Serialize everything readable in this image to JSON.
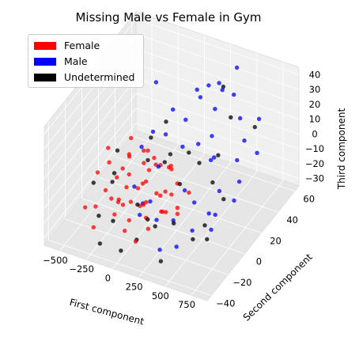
{
  "chart_data": {
    "type": "scatter",
    "title": "Missing Male vs Female in Gym",
    "xlabel": "First component",
    "ylabel": "Second component",
    "zlabel": "Third component",
    "xlim": [
      -650,
      900
    ],
    "ylim": [
      -45,
      65
    ],
    "zlim": [
      -35,
      45
    ],
    "x_ticks": [
      "−500",
      "−250",
      "0",
      "250",
      "500",
      "750"
    ],
    "x_tick_values": [
      -500,
      -250,
      0,
      250,
      500,
      750
    ],
    "y_ticks": [
      "−40",
      "−20",
      "0",
      "20",
      "40",
      "60"
    ],
    "y_tick_values": [
      -40,
      -20,
      0,
      20,
      40,
      60
    ],
    "z_ticks": [
      "−30",
      "−20",
      "−10",
      "0",
      "10",
      "20",
      "30",
      "40"
    ],
    "z_tick_values": [
      -30,
      -20,
      -10,
      0,
      10,
      20,
      30,
      40
    ],
    "legend_position": "top-left",
    "grid": true,
    "series": [
      {
        "name": "Female",
        "color": "#ff0000",
        "points": [
          [
            -420,
            -10,
            -5
          ],
          [
            -350,
            -5,
            0
          ],
          [
            -300,
            5,
            -10
          ],
          [
            -250,
            -15,
            -15
          ],
          [
            -200,
            0,
            -8
          ],
          [
            -150,
            10,
            -20
          ],
          [
            -100,
            -20,
            -12
          ],
          [
            -50,
            5,
            -5
          ],
          [
            0,
            -8,
            -18
          ],
          [
            50,
            12,
            -22
          ],
          [
            100,
            -5,
            -10
          ],
          [
            150,
            0,
            -25
          ],
          [
            200,
            -12,
            -15
          ],
          [
            -380,
            8,
            -20
          ],
          [
            -280,
            -18,
            -8
          ],
          [
            -180,
            15,
            -2
          ],
          [
            -80,
            -2,
            -25
          ],
          [
            20,
            20,
            -12
          ],
          [
            120,
            -20,
            -5
          ],
          [
            220,
            5,
            -28
          ],
          [
            -320,
            -25,
            -15
          ],
          [
            -220,
            25,
            -10
          ],
          [
            -120,
            -10,
            -30
          ],
          [
            -20,
            15,
            -8
          ],
          [
            80,
            -15,
            -20
          ],
          [
            180,
            10,
            -12
          ],
          [
            -400,
            0,
            5
          ],
          [
            -260,
            10,
            8
          ],
          [
            -160,
            -5,
            10
          ],
          [
            -60,
            0,
            3
          ],
          [
            40,
            -10,
            0
          ],
          [
            140,
            8,
            -2
          ],
          [
            -300,
            -30,
            -25
          ],
          [
            -200,
            30,
            -18
          ],
          [
            -100,
            -25,
            -5
          ],
          [
            0,
            25,
            -15
          ],
          [
            100,
            -30,
            -25
          ],
          [
            250,
            15,
            -20
          ],
          [
            300,
            -5,
            -15
          ],
          [
            -340,
            18,
            -12
          ],
          [
            -240,
            -8,
            -22
          ],
          [
            -140,
            3,
            -18
          ],
          [
            -40,
            -18,
            -10
          ],
          [
            60,
            18,
            -28
          ],
          [
            160,
            -8,
            -8
          ],
          [
            -420,
            -25,
            -18
          ],
          [
            -320,
            12,
            -28
          ],
          [
            -220,
            -15,
            -25
          ],
          [
            -120,
            22,
            -15
          ],
          [
            -20,
            -28,
            -22
          ],
          [
            80,
            5,
            -30
          ],
          [
            180,
            -25,
            -18
          ]
        ]
      },
      {
        "name": "Male",
        "color": "#0000ff",
        "points": [
          [
            300,
            40,
            20
          ],
          [
            350,
            30,
            10
          ],
          [
            400,
            50,
            25
          ],
          [
            450,
            20,
            5
          ],
          [
            500,
            45,
            15
          ],
          [
            550,
            35,
            -5
          ],
          [
            600,
            55,
            10
          ],
          [
            650,
            25,
            -10
          ],
          [
            700,
            40,
            0
          ],
          [
            250,
            10,
            -15
          ],
          [
            300,
            -10,
            -20
          ],
          [
            200,
            45,
            30
          ],
          [
            150,
            20,
            5
          ],
          [
            350,
            60,
            35
          ],
          [
            420,
            0,
            -12
          ],
          [
            480,
            10,
            -25
          ],
          [
            520,
            -15,
            -18
          ],
          [
            580,
            5,
            -20
          ],
          [
            620,
            -5,
            -22
          ],
          [
            680,
            15,
            -15
          ],
          [
            100,
            30,
            15
          ],
          [
            50,
            50,
            20
          ],
          [
            0,
            10,
            -5
          ],
          [
            -50,
            25,
            5
          ],
          [
            -100,
            40,
            10
          ],
          [
            -150,
            0,
            -15
          ],
          [
            -200,
            15,
            0
          ],
          [
            -250,
            35,
            -5
          ],
          [
            -300,
            45,
            20
          ],
          [
            220,
            55,
            25
          ],
          [
            380,
            25,
            -2
          ],
          [
            460,
            55,
            -8
          ],
          [
            540,
            15,
            -12
          ],
          [
            260,
            -25,
            -10
          ],
          [
            330,
            -30,
            -25
          ],
          [
            410,
            -20,
            -28
          ],
          [
            120,
            -15,
            -8
          ],
          [
            180,
            35,
            -3
          ],
          [
            -30,
            -5,
            -20
          ],
          [
            60,
            -20,
            -15
          ],
          [
            280,
            25,
            38
          ],
          [
            330,
            45,
            30
          ]
        ]
      },
      {
        "name": "Undetermined",
        "color": "#000000",
        "points": [
          [
            -380,
            5,
            -15
          ],
          [
            -280,
            -10,
            -8
          ],
          [
            -180,
            20,
            -12
          ],
          [
            -80,
            -5,
            -22
          ],
          [
            20,
            15,
            -5
          ],
          [
            120,
            -18,
            -18
          ],
          [
            220,
            8,
            -10
          ],
          [
            320,
            -12,
            -20
          ],
          [
            420,
            22,
            -14
          ],
          [
            520,
            0,
            -25
          ],
          [
            -330,
            -20,
            -25
          ],
          [
            -230,
            30,
            -5
          ],
          [
            -130,
            -28,
            -18
          ],
          [
            -30,
            28,
            -10
          ],
          [
            70,
            -25,
            -28
          ],
          [
            170,
            25,
            -2
          ],
          [
            270,
            -28,
            -12
          ],
          [
            370,
            35,
            -6
          ],
          [
            470,
            -8,
            -30
          ],
          [
            620,
            10,
            -12
          ],
          [
            -430,
            15,
            -8
          ],
          [
            -300,
            -30,
            5
          ],
          [
            -150,
            38,
            2
          ],
          [
            0,
            -35,
            -30
          ],
          [
            150,
            40,
            -20
          ],
          [
            300,
            50,
            28
          ],
          [
            450,
            40,
            18
          ],
          [
            600,
            50,
            8
          ],
          [
            -200,
            -35,
            -30
          ],
          [
            380,
            -35,
            -28
          ],
          [
            700,
            -20,
            -16
          ]
        ]
      }
    ]
  }
}
